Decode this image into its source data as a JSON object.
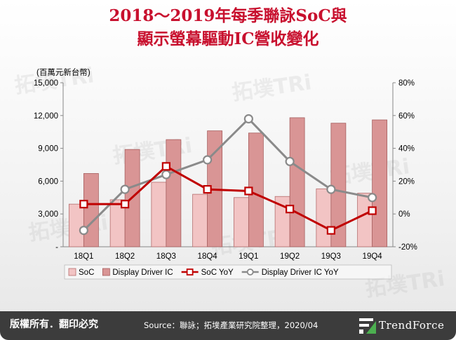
{
  "title": {
    "line1": "2018～2019年每季聯詠SoC與",
    "line2": "顯示螢幕驅動IC營收變化"
  },
  "footer": {
    "copyright": "版權所有．翻印必究",
    "source": "Source：聯詠；拓墣產業研究院整理，2020/04",
    "brand": "TrendForce"
  },
  "watermark_text": "拓墣TRi",
  "chart_data": {
    "type": "bar",
    "unit_label": "(百萬元新台幣)",
    "categories": [
      "18Q1",
      "18Q2",
      "18Q3",
      "18Q4",
      "19Q1",
      "19Q2",
      "19Q3",
      "19Q4"
    ],
    "y_left": {
      "range": [
        0,
        15000
      ],
      "ticks": [
        "-",
        "3,000",
        "6,000",
        "9,000",
        "12,000",
        "15,000"
      ],
      "tick_values": [
        0,
        3000,
        6000,
        9000,
        12000,
        15000
      ]
    },
    "y_right": {
      "range": [
        -20,
        80
      ],
      "ticks": [
        "-20%",
        "0%",
        "20%",
        "40%",
        "60%",
        "80%"
      ],
      "tick_values": [
        -20,
        0,
        20,
        40,
        60,
        80
      ]
    },
    "series": [
      {
        "name": "SoC",
        "kind": "bar",
        "values": [
          3900,
          4300,
          5900,
          4800,
          4500,
          4600,
          5300,
          4900
        ],
        "color": "#f2c4c4",
        "stroke": "#b56d6d"
      },
      {
        "name": "Display Driver IC",
        "kind": "bar",
        "values": [
          6700,
          8900,
          9800,
          10600,
          10400,
          11800,
          11300,
          11600
        ],
        "color": "#d99595",
        "stroke": "#a65e5e"
      },
      {
        "name": "SoC YoY",
        "kind": "line",
        "axis": "right",
        "values": [
          6,
          6,
          29,
          15,
          14,
          3,
          -10,
          2
        ],
        "color": "#c00000"
      },
      {
        "name": "Display Driver IC YoY",
        "kind": "line",
        "axis": "right",
        "values": [
          -10,
          15,
          24,
          33,
          58,
          32,
          15,
          10
        ],
        "color": "#8a8a8a"
      }
    ],
    "legend_placement": "bottom",
    "grid": false
  }
}
